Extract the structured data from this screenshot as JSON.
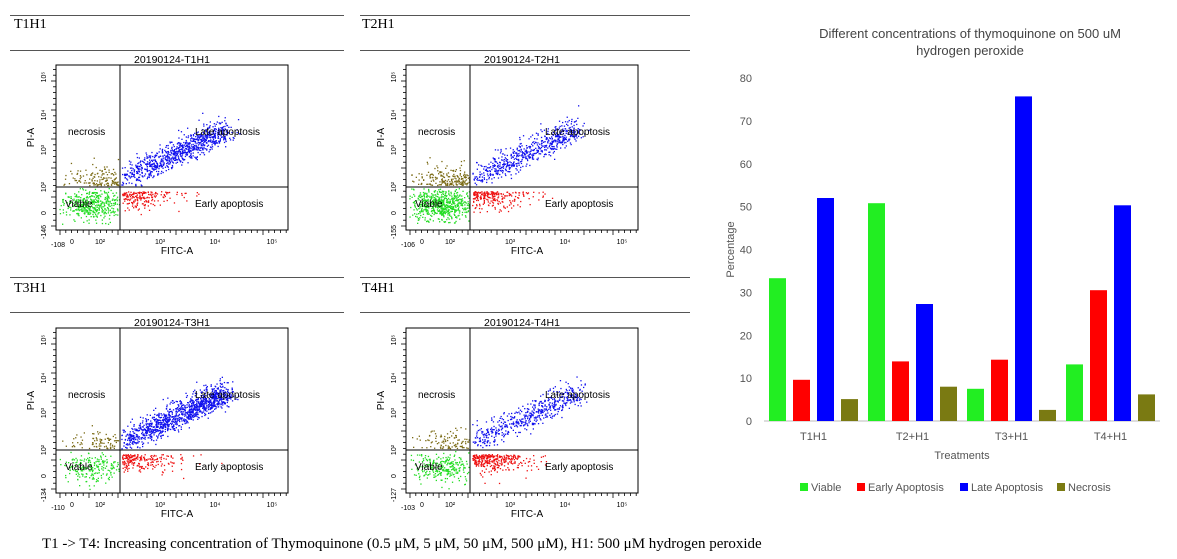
{
  "panels": [
    {
      "header": "T1H1",
      "plot_title": "20190124-T1H1",
      "q_necrosis": "necrosis",
      "q_late": "Late apoptosis",
      "q_viable": "Viable",
      "q_early": "Early apoptosis",
      "xlabel": "FITC-A",
      "ylabel": "PI-A",
      "x_min_label": "-108",
      "y_min_label": "-146",
      "dens": {
        "viable": 0.7,
        "early": 0.45,
        "late": 1.0,
        "necrosis": 0.5
      }
    },
    {
      "header": "T2H1",
      "plot_title": "20190124-T2H1",
      "q_necrosis": "necrosis",
      "q_late": "Late apoptosis",
      "q_viable": "Viable",
      "q_early": "Early apoptosis",
      "xlabel": "FITC-A",
      "ylabel": "PI-A",
      "x_min_label": "-106",
      "y_min_label": "-155",
      "dens": {
        "viable": 1.0,
        "early": 0.55,
        "late": 0.7,
        "necrosis": 0.7
      }
    },
    {
      "header": "T3H1",
      "plot_title": "20190124-T3H1",
      "q_necrosis": "necrosis",
      "q_late": "Late apoptosis",
      "q_viable": "Viable",
      "q_early": "Early apoptosis",
      "xlabel": "FITC-A",
      "ylabel": "PI-A",
      "x_min_label": "-110",
      "y_min_label": "-134",
      "dens": {
        "viable": 0.35,
        "early": 0.5,
        "late": 1.3,
        "necrosis": 0.3
      }
    },
    {
      "header": "T4H1",
      "plot_title": "20190124-T4H1",
      "q_necrosis": "necrosis",
      "q_late": "Late apoptosis",
      "q_viable": "Viable",
      "q_early": "Early apoptosis",
      "xlabel": "FITC-A",
      "ylabel": "PI-A",
      "x_min_label": "-103",
      "y_min_label": "-127",
      "dens": {
        "viable": 0.45,
        "early": 0.75,
        "late": 0.6,
        "necrosis": 0.35
      }
    }
  ],
  "chart_data": {
    "type": "bar",
    "title": "Different concentrations of thymoquinone on 500 uM hydrogen peroxide",
    "title_lines": [
      "Different concentrations of thymoquinone on 500 uM",
      "hydrogen peroxide"
    ],
    "xlabel": "Treatments",
    "ylabel": "Percentage",
    "ylim": [
      0,
      80
    ],
    "yticks": [
      0,
      10,
      20,
      30,
      40,
      50,
      60,
      70,
      80
    ],
    "categories": [
      "T1H1",
      "T2+H1",
      "T3+H1",
      "T4+H1"
    ],
    "series": [
      {
        "name": "Viable",
        "color": "#22ee22",
        "values": [
          33.3,
          50.8,
          7.5,
          13.2
        ]
      },
      {
        "name": "Early Apoptosis",
        "color": "#ff0000",
        "values": [
          9.6,
          13.9,
          14.3,
          30.5
        ]
      },
      {
        "name": "Late Apoptosis",
        "color": "#0000ff",
        "values": [
          52.0,
          27.3,
          75.7,
          50.3
        ]
      },
      {
        "name": "Necrosis",
        "color": "#7a7a12",
        "values": [
          5.1,
          8.0,
          2.6,
          6.2
        ]
      }
    ],
    "grid": false,
    "legend": "bottom"
  },
  "scatter_colors": {
    "viable": "#22dd22",
    "early": "#ee1111",
    "late": "#1111ee",
    "necrosis": "#7a6a14"
  },
  "caption": "T1 -> T4: Increasing concentration of Thymoquinone (0.5 μM, 5 μM, 50 μM, 500 μM), H1: 500 μM hydrogen peroxide"
}
